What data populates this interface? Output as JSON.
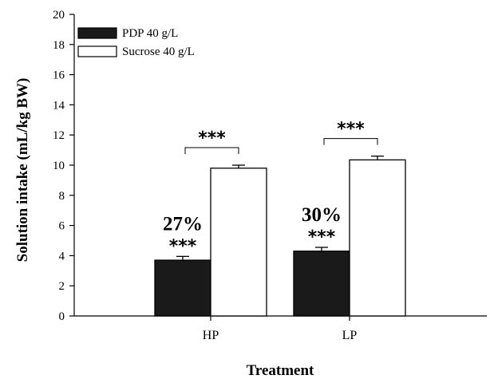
{
  "chart_data": {
    "type": "bar",
    "xlabel": "Treatment",
    "ylabel": "Solution intake (mL/kg BW)",
    "ylim": [
      0,
      20
    ],
    "yticks": [
      0,
      2,
      4,
      6,
      8,
      10,
      12,
      14,
      16,
      18,
      20
    ],
    "categories": [
      "HP",
      "LP"
    ],
    "series": [
      {
        "name": "PDP 40 g/L",
        "color": "#1a1a1a",
        "values": [
          3.7,
          4.3
        ],
        "errors": [
          0.25,
          0.25
        ]
      },
      {
        "name": "Sucrose 40 g/L",
        "color": "#ffffff",
        "values": [
          9.8,
          10.35
        ],
        "errors": [
          0.2,
          0.25
        ]
      }
    ],
    "annotations": {
      "percent_labels": [
        "27%",
        "30%"
      ],
      "bar_significance": [
        "***",
        "***"
      ],
      "bracket_significance": [
        "***",
        "***"
      ]
    },
    "legend_position": "top-left",
    "grid": false
  }
}
